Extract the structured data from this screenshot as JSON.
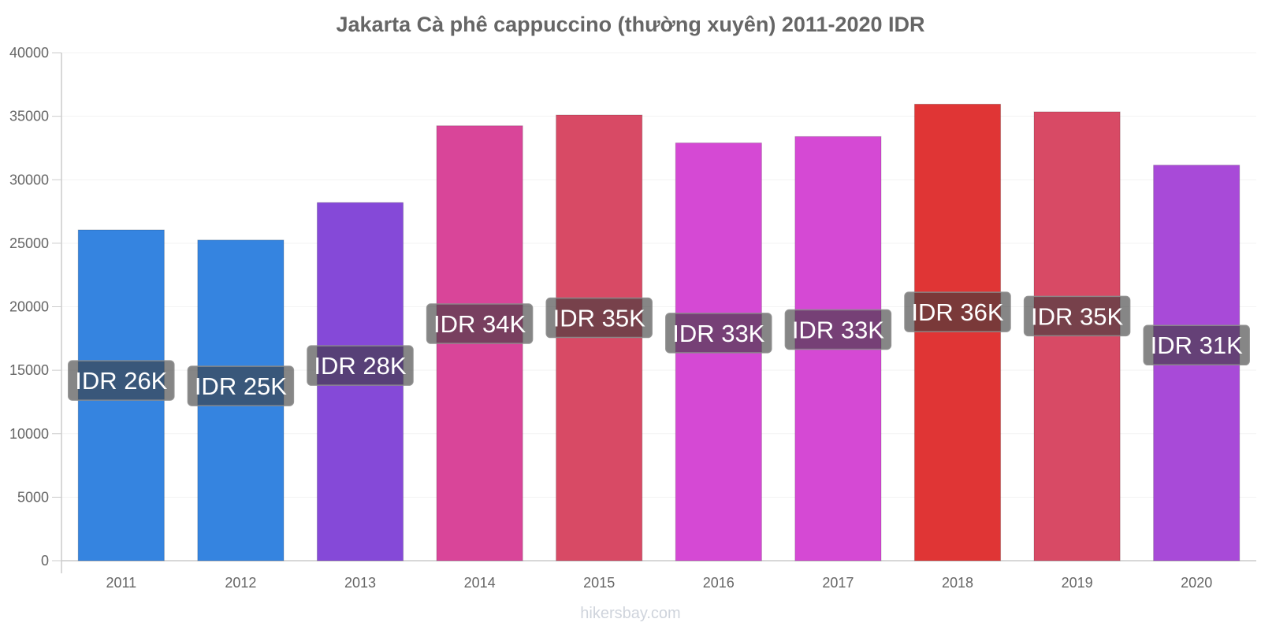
{
  "chart_data": {
    "type": "bar",
    "title": "Jakarta Cà phê cappuccino (thường xuyên) 2011-2020 IDR",
    "xlabel": "",
    "ylabel": "",
    "ylim": [
      0,
      40000
    ],
    "yticks": [
      "0",
      "5000",
      "10000",
      "15000",
      "20000",
      "25000",
      "30000",
      "35000",
      "40000"
    ],
    "categories": [
      "2011",
      "2012",
      "2013",
      "2014",
      "2015",
      "2016",
      "2017",
      "2018",
      "2019",
      "2020"
    ],
    "values": [
      26050,
      25250,
      28200,
      34250,
      35100,
      32900,
      33400,
      35950,
      35350,
      31150
    ],
    "data_labels": [
      "IDR 26K",
      "IDR 25K",
      "IDR 28K",
      "IDR 34K",
      "IDR 35K",
      "IDR 33K",
      "IDR 33K",
      "IDR 36K",
      "IDR 35K",
      "IDR 31K"
    ],
    "colors": [
      "#3584e0",
      "#3584e0",
      "#8549d8",
      "#d94599",
      "#d84a65",
      "#d549d4",
      "#d549d4",
      "#e03535",
      "#d84a65",
      "#a84ad8"
    ],
    "grid": true,
    "legend": "none"
  },
  "watermark": "hikersbay.com"
}
